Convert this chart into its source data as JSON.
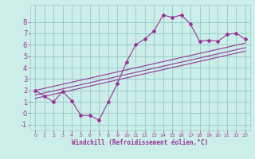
{
  "xlabel": "Windchill (Refroidissement éolien,°C)",
  "bg_color": "#cceee8",
  "grid_color": "#99cccc",
  "line_color": "#993399",
  "x_data": [
    0,
    1,
    2,
    3,
    4,
    5,
    6,
    7,
    8,
    9,
    10,
    11,
    12,
    13,
    14,
    15,
    16,
    17,
    18,
    19,
    20,
    21,
    22,
    23
  ],
  "y_main": [
    2.0,
    1.5,
    1.0,
    1.9,
    1.1,
    -0.2,
    -0.2,
    -0.6,
    1.0,
    2.6,
    4.5,
    6.0,
    6.5,
    7.2,
    8.6,
    8.4,
    8.6,
    7.8,
    6.3,
    6.4,
    6.3,
    6.9,
    7.0,
    6.5
  ],
  "y_line1": [
    2.0,
    2.18,
    2.36,
    2.54,
    2.72,
    2.9,
    3.08,
    3.26,
    3.44,
    3.62,
    3.8,
    3.98,
    4.16,
    4.34,
    4.52,
    4.7,
    4.88,
    5.06,
    5.24,
    5.42,
    5.6,
    5.78,
    5.96,
    6.14
  ],
  "y_line2": [
    1.6,
    1.78,
    1.96,
    2.14,
    2.32,
    2.5,
    2.68,
    2.86,
    3.04,
    3.22,
    3.4,
    3.58,
    3.76,
    3.94,
    4.12,
    4.3,
    4.48,
    4.66,
    4.84,
    5.02,
    5.2,
    5.38,
    5.56,
    5.74
  ],
  "y_line3": [
    1.3,
    1.48,
    1.66,
    1.84,
    2.02,
    2.2,
    2.38,
    2.56,
    2.74,
    2.92,
    3.1,
    3.28,
    3.46,
    3.64,
    3.82,
    4.0,
    4.18,
    4.36,
    4.54,
    4.72,
    4.9,
    5.08,
    5.26,
    5.44
  ],
  "ylim": [
    -1.5,
    9.5
  ],
  "xlim": [
    -0.5,
    23.5
  ],
  "yticks": [
    -1,
    0,
    1,
    2,
    3,
    4,
    5,
    6,
    7,
    8
  ],
  "xticks": [
    0,
    1,
    2,
    3,
    4,
    5,
    6,
    7,
    8,
    9,
    10,
    11,
    12,
    13,
    14,
    15,
    16,
    17,
    18,
    19,
    20,
    21,
    22,
    23
  ]
}
